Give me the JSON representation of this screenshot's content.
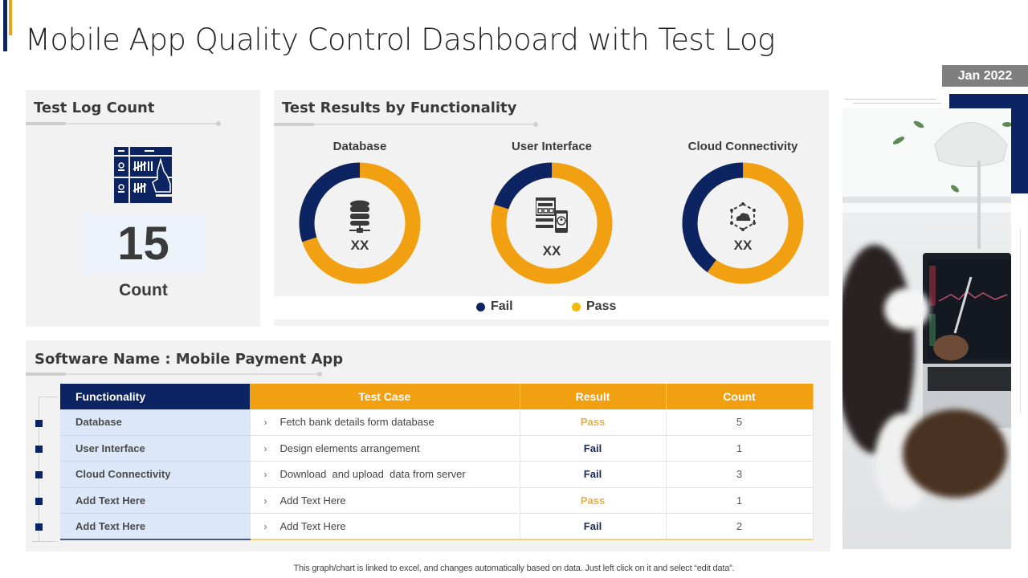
{
  "header": {
    "title": "Mobile App Quality Control Dashboard with Test Log",
    "date_badge": "Jan 2022"
  },
  "test_log": {
    "title": "Test Log Count",
    "icon": "tally-sheet-icon",
    "count": "15",
    "count_label": "Count"
  },
  "test_results": {
    "title": "Test Results by Functionality",
    "donuts": [
      {
        "label": "Database",
        "icon": "database-server-icon",
        "value": "XX",
        "fail_pct": 30,
        "pass_pct": 70
      },
      {
        "label": "User Interface",
        "icon": "ui-layout-icon",
        "value": "XX",
        "fail_pct": 20,
        "pass_pct": 80
      },
      {
        "label": "Cloud Connectivity",
        "icon": "cloud-network-icon",
        "value": "XX",
        "fail_pct": 40,
        "pass_pct": 60
      }
    ],
    "legend": [
      {
        "label": "Fail",
        "color": "#0c2461"
      },
      {
        "label": "Pass",
        "color": "#f5b90a"
      }
    ]
  },
  "software": {
    "title": "Software Name : Mobile Payment App",
    "columns": [
      "Functionality",
      "Test Case",
      "Result",
      "Count"
    ],
    "rows": [
      {
        "functionality": "Database",
        "test_case": "Fetch bank details form database",
        "result": "Pass",
        "count": "5"
      },
      {
        "functionality": "User Interface",
        "test_case": "Design elements arrangement",
        "result": "Fail",
        "count": "1"
      },
      {
        "functionality": "Cloud Connectivity",
        "test_case": "Download  and upload  data from server",
        "result": "Fail",
        "count": "3"
      },
      {
        "functionality": "Add Text Here",
        "test_case": "Add Text Here",
        "result": "Pass",
        "count": "1"
      },
      {
        "functionality": "Add Text Here",
        "test_case": "Add Text Here",
        "result": "Fail",
        "count": "2"
      }
    ],
    "chevron": "›"
  },
  "footnote": "This graph/chart is linked to excel,  and changes automatically based on data. Just left click on it and select “edit data”.",
  "colors": {
    "navy": "#0c2461",
    "gold": "#f0a010",
    "panel": "#f2f2f2"
  },
  "chart_data": {
    "type": "pie",
    "title": "Test Results by Functionality",
    "categories": [
      "Database",
      "User Interface",
      "Cloud Connectivity"
    ],
    "series": [
      {
        "name": "Fail",
        "values": [
          30,
          20,
          40
        ]
      },
      {
        "name": "Pass",
        "values": [
          70,
          80,
          60
        ]
      }
    ],
    "center_labels": [
      "XX",
      "XX",
      "XX"
    ],
    "legend_position": "bottom",
    "table": {
      "columns": [
        "Functionality",
        "Test Case",
        "Result",
        "Count"
      ],
      "rows": [
        [
          "Database",
          "Fetch bank details form database",
          "Pass",
          5
        ],
        [
          "User Interface",
          "Design elements arrangement",
          "Fail",
          1
        ],
        [
          "Cloud Connectivity",
          "Download and upload data from server",
          "Fail",
          3
        ],
        [
          "Add Text Here",
          "Add Text Here",
          "Pass",
          1
        ],
        [
          "Add Text Here",
          "Add Text Here",
          "Fail",
          2
        ]
      ]
    },
    "total_count": 15
  }
}
